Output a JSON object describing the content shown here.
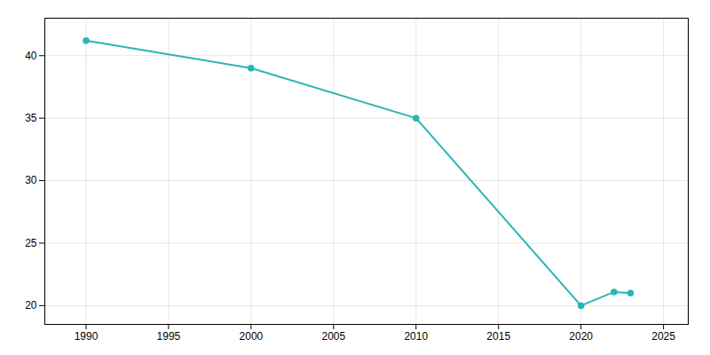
{
  "chart_data": {
    "type": "line",
    "x": [
      1990,
      2000,
      2010,
      2020,
      2022,
      2023
    ],
    "values": [
      41.2,
      39.0,
      35.0,
      20.0,
      21.1,
      21.0
    ],
    "color": "#2ab5b5",
    "marker": "circle",
    "xlim": [
      1987.5,
      2026.5
    ],
    "ylim": [
      18.5,
      43.0
    ],
    "xticks": [
      1990,
      1995,
      2000,
      2005,
      2010,
      2015,
      2020,
      2025
    ],
    "yticks": [
      20,
      25,
      30,
      35,
      40
    ],
    "grid": true
  }
}
